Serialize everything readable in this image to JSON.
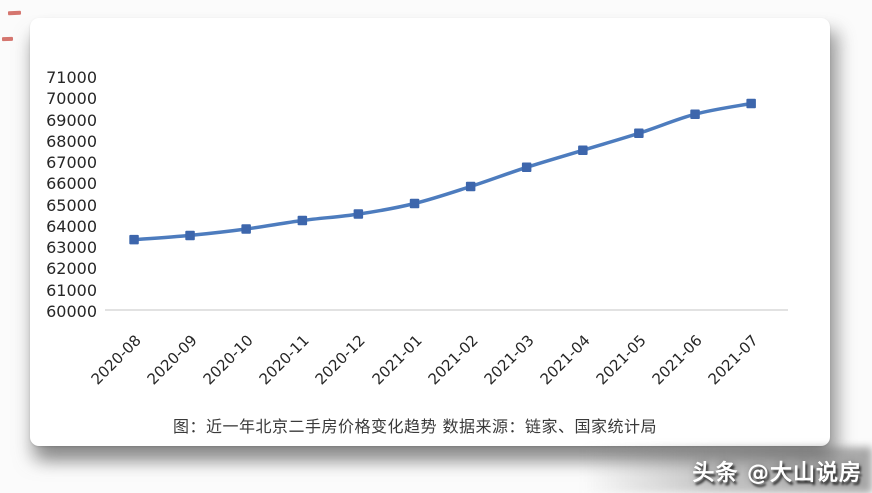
{
  "page": {
    "background": "#fbfbfb"
  },
  "annotation_marks": {
    "color": "#c84a40",
    "count": 2
  },
  "caption": {
    "text": "图：近一年北京二手房价格变化趋势  数据来源：链家、国家统计局"
  },
  "watermark": {
    "text": "头条 @大山说房"
  },
  "chart_data": {
    "type": "line",
    "title": "",
    "xlabel": "",
    "ylabel": "",
    "categories": [
      "2020-08",
      "2020-09",
      "2020-10",
      "2020-11",
      "2020-12",
      "2021-01",
      "2021-02",
      "2021-03",
      "2021-04",
      "2021-05",
      "2021-06",
      "2021-07"
    ],
    "values": [
      63400,
      63600,
      63900,
      64300,
      64600,
      65100,
      65900,
      66800,
      67600,
      68400,
      69300,
      69800
    ],
    "ylim": [
      60000,
      71000
    ],
    "y_tick_step": 1000,
    "y_tick_labels": [
      "71000",
      "70000",
      "69000",
      "68000",
      "67000",
      "66000",
      "65000",
      "64000",
      "63000",
      "62000",
      "61000",
      "60000"
    ],
    "grid": false,
    "legend": false,
    "smoothed": true,
    "marker_shape": "square",
    "line_color": "#4d7cbe",
    "marker_color": "#3d66ac",
    "axis_line_color": "#d9d9d9",
    "tick_label_color": "#262626"
  }
}
